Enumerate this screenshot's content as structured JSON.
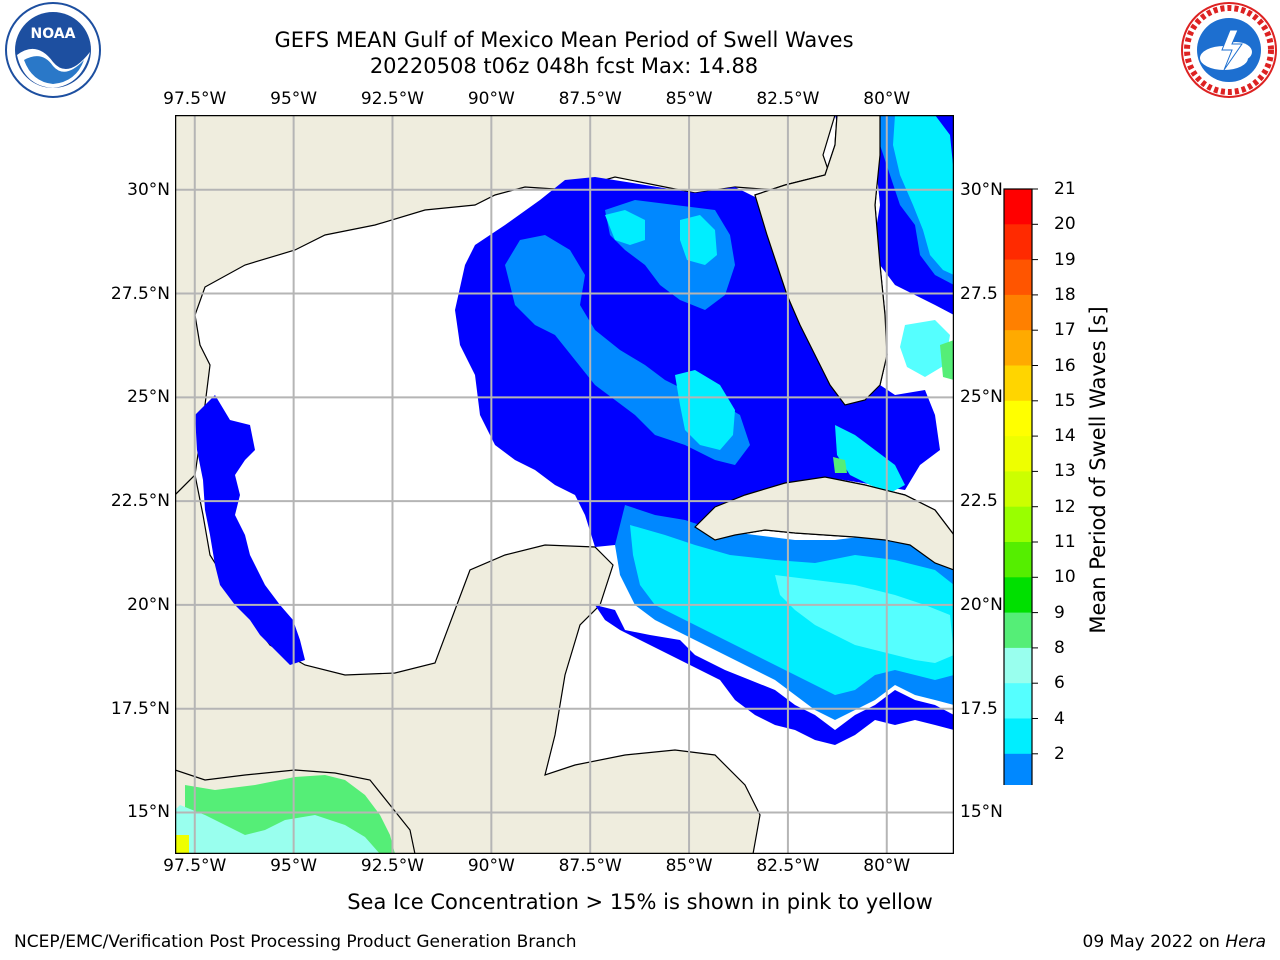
{
  "title": {
    "line1": "GEFS MEAN Gulf of Mexico Mean Period of Swell Waves",
    "line2": "20220508 t06z 048h fcst   Max: 14.88"
  },
  "map": {
    "lon_ticks": [
      "97.5°W",
      "95°W",
      "92.5°W",
      "90°W",
      "87.5°W",
      "85°W",
      "82.5°W",
      "80°W"
    ],
    "lat_ticks_left": [
      "30°N",
      "27.5°N",
      "25°N",
      "22.5°N",
      "20°N",
      "17.5°N",
      "15°N"
    ],
    "lat_ticks_right": [
      "30°N",
      "27.5",
      "25°N",
      "22.5",
      "20°N",
      "17.5",
      "15°N"
    ],
    "extent": {
      "lon_min": -98.0,
      "lon_max": -78.3,
      "lat_min": 14.0,
      "lat_max": 31.8
    },
    "land_color": "#efedde",
    "ocean_color": "#ffffff"
  },
  "colorbar": {
    "title": "Mean Period of Swell Waves [s]",
    "labels": [
      "21",
      "20",
      "19",
      "18",
      "17",
      "16",
      "15",
      "14",
      "13",
      "12",
      "11",
      "10",
      "9",
      "8",
      "6",
      "4",
      "2"
    ],
    "colors_top_to_bottom": [
      "#ff0000",
      "#ff2a00",
      "#ff5500",
      "#ff8000",
      "#ffaa00",
      "#ffd500",
      "#ffff00",
      "#eeff00",
      "#ccff00",
      "#99ff00",
      "#55ee00",
      "#00e000",
      "#55ee77",
      "#99ffee",
      "#55ffff",
      "#00eeff",
      "#0088ff",
      "#0000ff"
    ]
  },
  "fields": {
    "blue": "#0000ff",
    "light_blue": "#0088ff",
    "cyan": "#00eeff",
    "aqua": "#55ffff",
    "pale": "#99ffee",
    "green": "#55ee77"
  },
  "sea_ice_note": "Sea Ice Concentration > 15% is shown in pink to yellow",
  "footer": {
    "left": "NCEP/EMC/Verification Post Processing Product Generation Branch",
    "date": "09 May 2022 on",
    "machine": "Hera"
  },
  "logos": {
    "noaa": "noaa-logo",
    "nws": "nws-logo"
  }
}
